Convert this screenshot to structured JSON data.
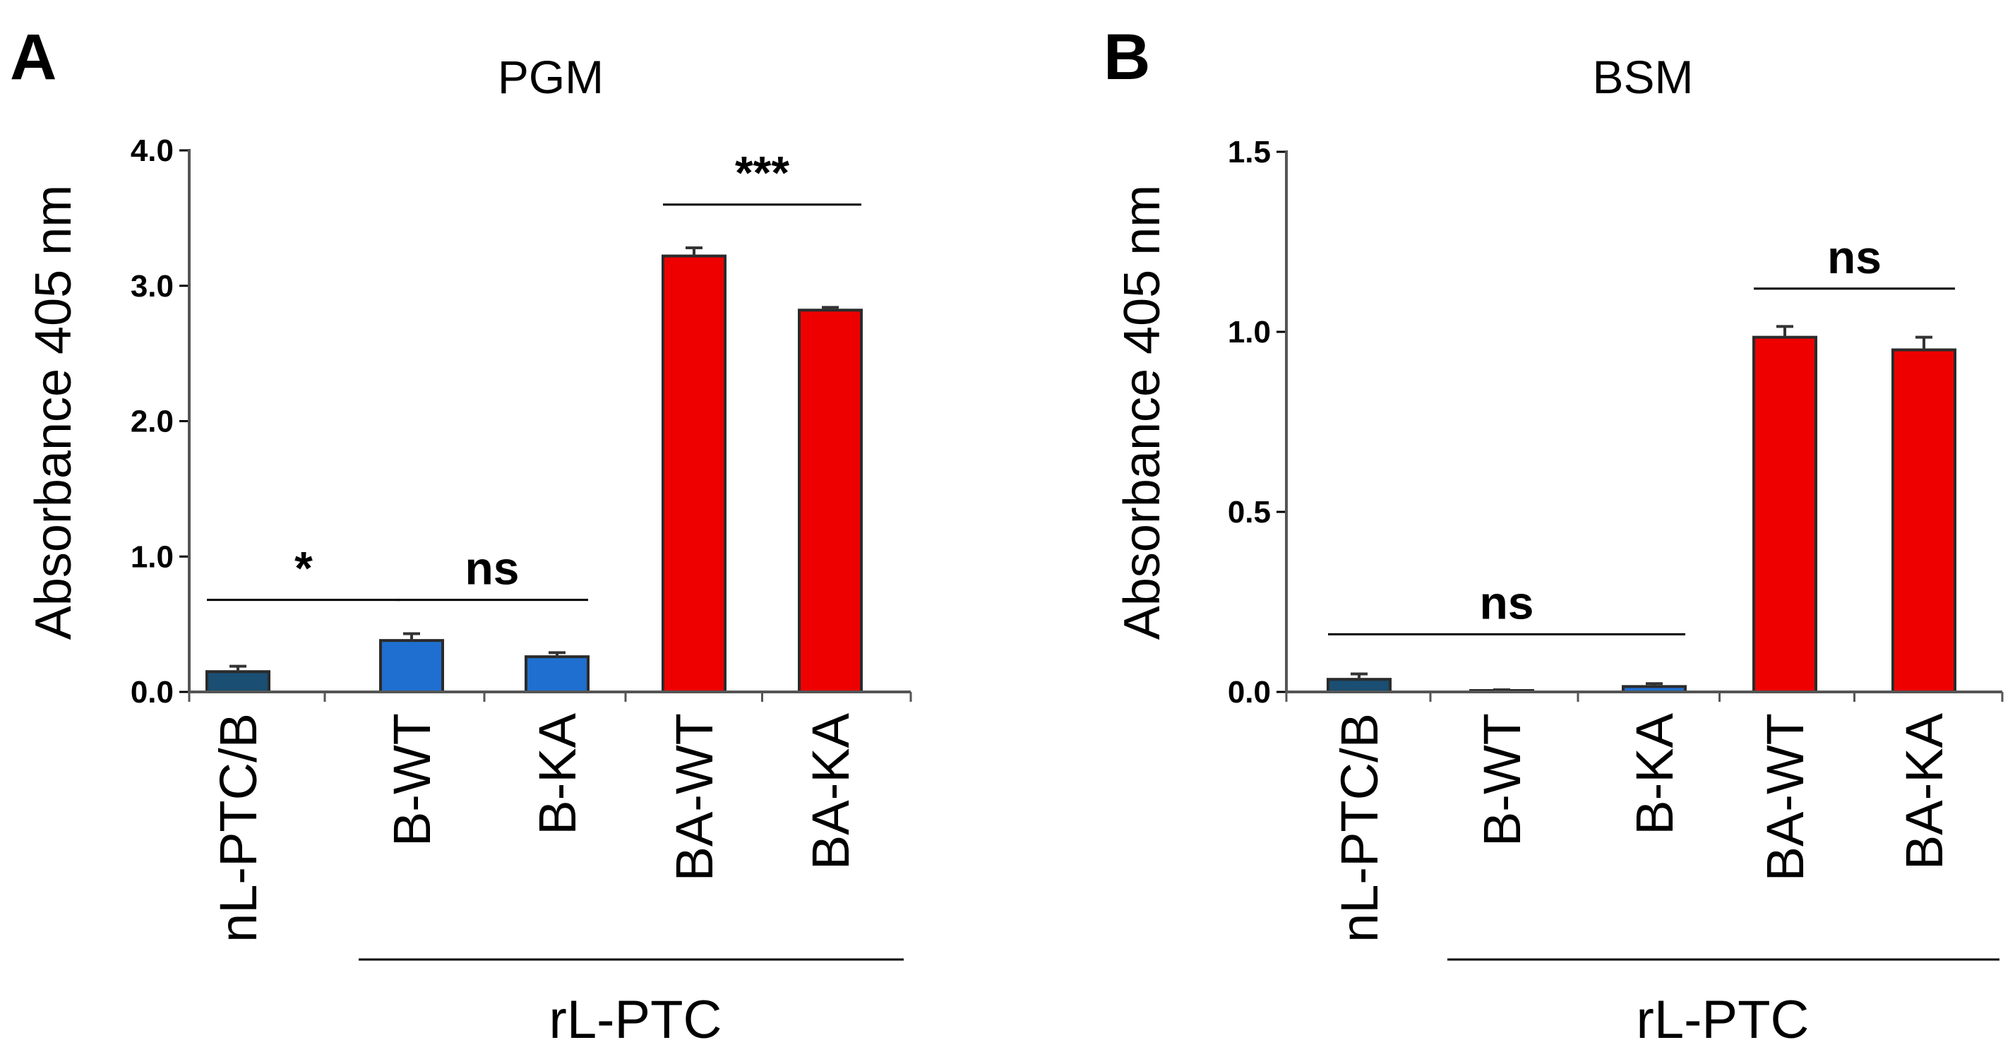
{
  "figure": {
    "group_label": "rL-PTC"
  },
  "chart_data": [
    {
      "panel": "A",
      "type": "bar",
      "title": "PGM",
      "ylabel": "Absorbance 405 nm",
      "xlabel": "",
      "ylim": [
        0,
        4.0
      ],
      "yticks": [
        "0.0",
        "1.0",
        "2.0",
        "3.0",
        "4.0"
      ],
      "ytick_values": [
        0,
        1,
        2,
        3,
        4
      ],
      "categories": [
        "nL-PTC/B",
        "B-WT",
        "B-KA",
        "BA-WT",
        "BA-KA"
      ],
      "values": [
        0.15,
        0.38,
        0.26,
        3.22,
        2.82
      ],
      "errors": [
        0.04,
        0.05,
        0.03,
        0.06,
        0.02
      ],
      "colors": [
        "#1a4e72",
        "#1f6fd0",
        "#1f6fd0",
        "#ee0000",
        "#ee0000"
      ],
      "significance": [
        {
          "label": "*",
          "from": 0,
          "to": 1,
          "y": 0.68
        },
        {
          "label": "ns",
          "from": 1,
          "to": 2,
          "y": 0.68
        },
        {
          "label": "***",
          "from": 3,
          "to": 4,
          "y": 3.6
        }
      ]
    },
    {
      "panel": "B",
      "type": "bar",
      "title": "BSM",
      "ylabel": "Absorbance 405 nm",
      "xlabel": "",
      "ylim": [
        0,
        1.5
      ],
      "yticks": [
        "0.0",
        "0.5",
        "1.0",
        "1.5"
      ],
      "ytick_values": [
        0,
        0.5,
        1.0,
        1.5
      ],
      "categories": [
        "nL-PTC/B",
        "B-WT",
        "B-KA",
        "BA-WT",
        "BA-KA"
      ],
      "values": [
        0.035,
        0.003,
        0.015,
        0.985,
        0.95
      ],
      "errors": [
        0.015,
        0.003,
        0.008,
        0.03,
        0.035
      ],
      "colors": [
        "#1a4e72",
        "#1f6fd0",
        "#1f6fd0",
        "#ee0000",
        "#ee0000"
      ],
      "significance": [
        {
          "label": "ns",
          "from": 0,
          "to": 2,
          "y": 0.16
        },
        {
          "label": "ns",
          "from": 3,
          "to": 4,
          "y": 1.12
        }
      ]
    }
  ]
}
